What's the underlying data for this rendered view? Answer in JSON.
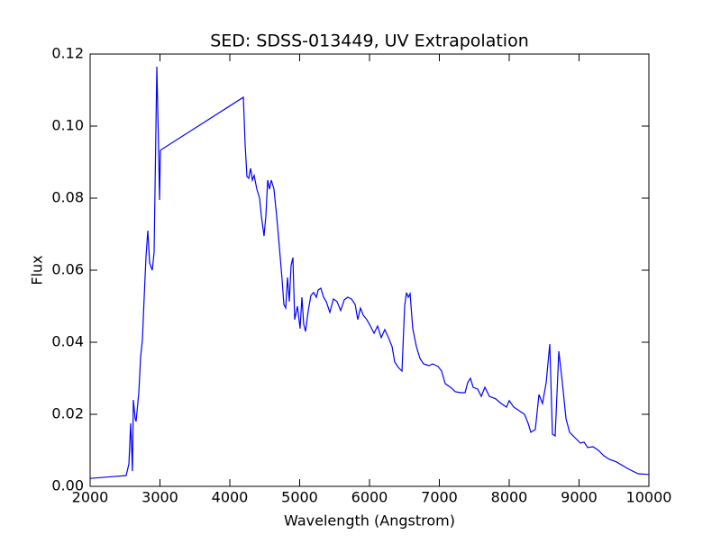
{
  "chart_data": {
    "type": "line",
    "title": "SED: SDSS-013449, UV Extrapolation",
    "x_label": "Wavelength (Angstrom)",
    "y_label": "Flux",
    "xlim": [
      2000,
      10000
    ],
    "ylim": [
      0,
      0.12
    ],
    "xticks": [
      2000,
      3000,
      4000,
      5000,
      6000,
      7000,
      8000,
      9000,
      10000
    ],
    "yticks": [
      {
        "value": 0,
        "label": "0.00"
      },
      0.02,
      0.04,
      0.06,
      0.08,
      {
        "value": 0.1,
        "label": "0.10"
      },
      0.12
    ],
    "grid": false,
    "series": [
      {
        "color": "#0000ff",
        "x": [
          2000,
          2516,
          2555,
          2581,
          2606,
          2619,
          2645,
          2658,
          2697,
          2723,
          2748,
          2774,
          2800,
          2826,
          2852,
          2890,
          2916,
          2955,
          2981,
          2994,
          3006,
          4194,
          4219,
          4245,
          4271,
          4297,
          4323,
          4348,
          4387,
          4426,
          4452,
          4490,
          4516,
          4542,
          4568,
          4594,
          4632,
          4671,
          4710,
          4748,
          4774,
          4800,
          4826,
          4852,
          4877,
          4903,
          4929,
          4968,
          5006,
          5032,
          5058,
          5084,
          5123,
          5161,
          5200,
          5239,
          5265,
          5303,
          5342,
          5381,
          5432,
          5484,
          5535,
          5587,
          5639,
          5690,
          5742,
          5794,
          5832,
          5871,
          5910,
          5961,
          6013,
          6065,
          6116,
          6168,
          6219,
          6271,
          6323,
          6361,
          6413,
          6465,
          6503,
          6529,
          6555,
          6581,
          6619,
          6671,
          6723,
          6774,
          6852,
          6903,
          6981,
          7032,
          7084,
          7161,
          7226,
          7303,
          7368,
          7406,
          7445,
          7484,
          7548,
          7600,
          7652,
          7716,
          7806,
          7884,
          7961,
          8000,
          8065,
          8142,
          8219,
          8271,
          8310,
          8374,
          8426,
          8477,
          8529,
          8581,
          8619,
          8658,
          8710,
          8761,
          8813,
          8865,
          8942,
          9019,
          9071,
          9123,
          9200,
          9277,
          9355,
          9432,
          9535,
          9690,
          9845,
          10000
        ],
        "values": [
          0.0022,
          0.003,
          0.0062,
          0.0175,
          0.0042,
          0.024,
          0.0188,
          0.018,
          0.026,
          0.036,
          0.0405,
          0.0525,
          0.0638,
          0.071,
          0.062,
          0.06,
          0.065,
          0.1165,
          0.093,
          0.0795,
          0.0933,
          0.108,
          0.095,
          0.086,
          0.0855,
          0.0883,
          0.085,
          0.0863,
          0.0825,
          0.08,
          0.075,
          0.0695,
          0.075,
          0.085,
          0.0825,
          0.085,
          0.0825,
          0.075,
          0.0663,
          0.0575,
          0.0505,
          0.0495,
          0.058,
          0.0513,
          0.0613,
          0.0635,
          0.0463,
          0.05,
          0.0438,
          0.0525,
          0.045,
          0.043,
          0.0488,
          0.053,
          0.0538,
          0.0525,
          0.0545,
          0.055,
          0.0525,
          0.0513,
          0.0483,
          0.052,
          0.0513,
          0.0488,
          0.0518,
          0.0525,
          0.052,
          0.0505,
          0.0463,
          0.0495,
          0.0475,
          0.0463,
          0.0445,
          0.0425,
          0.0445,
          0.0413,
          0.0435,
          0.0413,
          0.0388,
          0.0345,
          0.033,
          0.032,
          0.05,
          0.0538,
          0.0525,
          0.0535,
          0.0438,
          0.0388,
          0.0355,
          0.034,
          0.0335,
          0.034,
          0.0333,
          0.032,
          0.0285,
          0.0275,
          0.0263,
          0.026,
          0.026,
          0.0288,
          0.03,
          0.0275,
          0.027,
          0.025,
          0.0275,
          0.025,
          0.0243,
          0.023,
          0.022,
          0.0238,
          0.022,
          0.021,
          0.02,
          0.0175,
          0.015,
          0.0158,
          0.0255,
          0.023,
          0.0288,
          0.0395,
          0.0145,
          0.014,
          0.0375,
          0.0288,
          0.0188,
          0.015,
          0.0135,
          0.012,
          0.0123,
          0.0108,
          0.011,
          0.01,
          0.0085,
          0.0075,
          0.0068,
          0.005,
          0.0035,
          0.0033
        ]
      }
    ]
  }
}
